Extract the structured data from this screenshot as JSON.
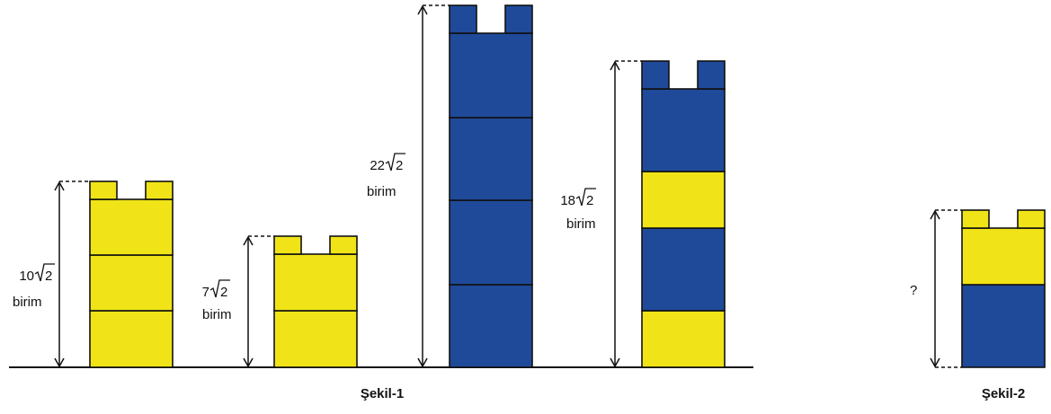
{
  "colors": {
    "yellow": "#F0E418",
    "blue": "#1F4A9A",
    "outline": "#111111"
  },
  "unit": "birim",
  "figure1": {
    "caption": "Şekil-1",
    "towers": [
      {
        "name": "tower-1",
        "height_coef": "10",
        "height_radical": "2",
        "blocks_bottom_to_top": [
          "yellow",
          "yellow",
          "yellow"
        ],
        "cap_color": "yellow"
      },
      {
        "name": "tower-2",
        "height_coef": "7",
        "height_radical": "2",
        "blocks_bottom_to_top": [
          "yellow",
          "yellow"
        ],
        "cap_color": "yellow"
      },
      {
        "name": "tower-3",
        "height_coef": "22",
        "height_radical": "2",
        "blocks_bottom_to_top": [
          "blue",
          "blue",
          "blue",
          "blue"
        ],
        "cap_color": "blue"
      },
      {
        "name": "tower-4",
        "height_coef": "18",
        "height_radical": "2",
        "blocks_bottom_to_top": [
          "yellow",
          "blue",
          "yellow",
          "blue"
        ],
        "cap_color": "blue"
      }
    ]
  },
  "figure2": {
    "caption": "Şekil-2",
    "unknown_label": "?",
    "blocks_bottom_to_top": [
      "blue",
      "yellow"
    ],
    "cap_color": "yellow"
  }
}
